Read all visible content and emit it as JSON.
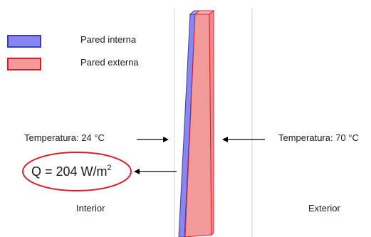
{
  "legend": {
    "inner_wall": {
      "label": "Pared interna",
      "fill": "#8a86f0",
      "stroke": "#3c3cb4"
    },
    "outer_wall": {
      "label": "Pared externa",
      "fill": "#f29a9a",
      "stroke": "#d8202a"
    }
  },
  "interior": {
    "temperature_label": "Temperatura: 24 °C",
    "heat_flux": {
      "prefix": "Q = 204 W/m",
      "exponent": "2"
    },
    "side_label": "Interior"
  },
  "exterior": {
    "temperature_label": "Temperatura: 70 °C",
    "side_label": "Exterior"
  },
  "colors": {
    "guide_line": "#d3d3d3",
    "arrow": "#000000",
    "ellipse": "#d8202a"
  }
}
